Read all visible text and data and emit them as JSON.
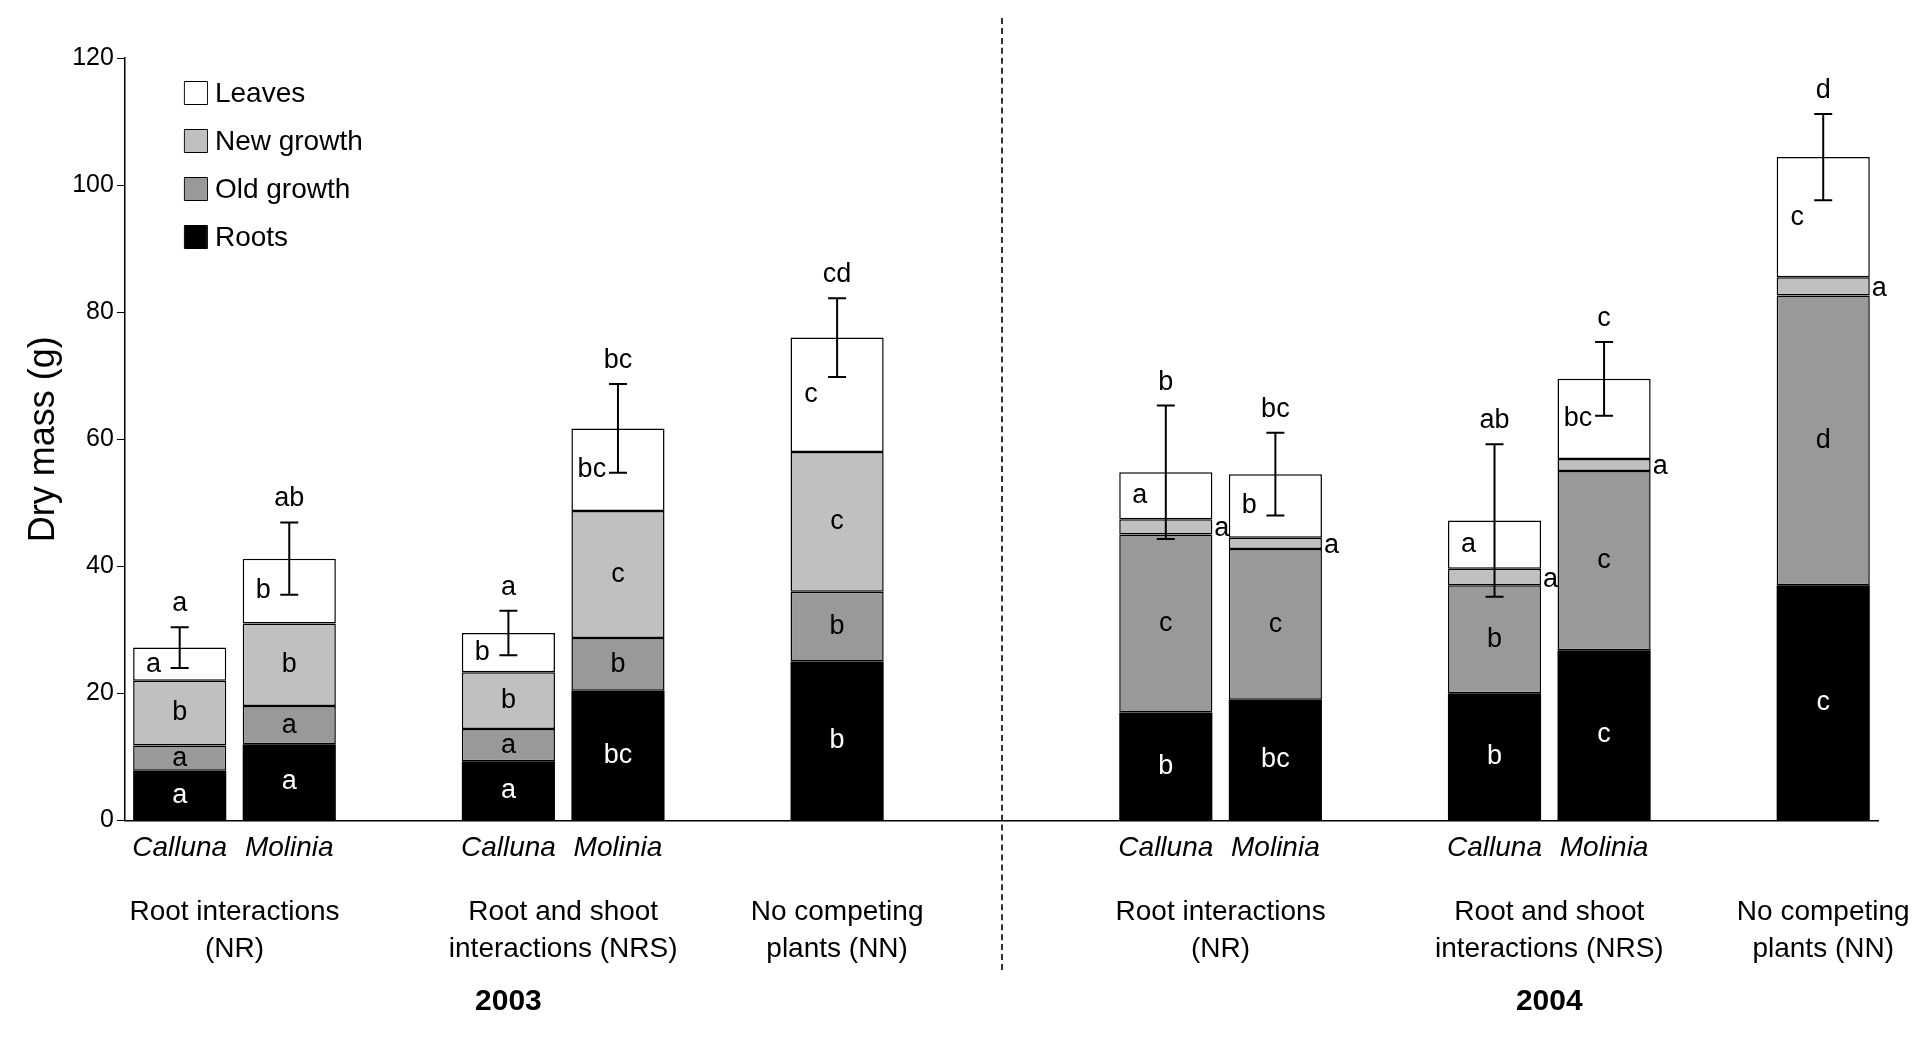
{
  "chart_data": {
    "type": "bar",
    "stacked": true,
    "ylabel": "Dry mass (g)",
    "categories": [
      "Calluna",
      "Molinia",
      null,
      "Calluna",
      "Molinia",
      null,
      null,
      null,
      null,
      "Calluna",
      "Molinia",
      null,
      "Calluna",
      "Molinia",
      null,
      null
    ],
    "series": [
      {
        "name": "Roots",
        "color": "#000000",
        "values": [
          7.8,
          12,
          null,
          9.3,
          20.4,
          null,
          25,
          null,
          null,
          17,
          19,
          null,
          20,
          26.8,
          null,
          37
        ],
        "value_labels": [
          "a",
          "a",
          null,
          "a",
          "bc",
          null,
          "b",
          null,
          null,
          "b",
          "bc",
          null,
          "b",
          "c",
          null,
          "c"
        ]
      },
      {
        "name": "Old growth",
        "color": "#999999",
        "values": [
          4,
          6,
          null,
          5.1,
          8.3,
          null,
          11,
          null,
          null,
          28,
          23.7,
          null,
          17,
          28.2,
          null,
          45.6
        ],
        "value_labels": [
          "a",
          "a",
          null,
          "a",
          "b",
          null,
          "b",
          null,
          null,
          "c",
          "c",
          null,
          "b",
          "c",
          null,
          "d"
        ]
      },
      {
        "name": "New growth",
        "color": "#c0c0c0",
        "values": [
          10.2,
          13,
          null,
          8.9,
          20,
          null,
          22,
          null,
          null,
          2.4,
          1.8,
          null,
          2.6,
          1.9,
          null,
          2.9
        ],
        "value_labels": [
          "b",
          "b",
          null,
          "b",
          "c",
          null,
          "c",
          null,
          null,
          "a",
          "a",
          null,
          "a",
          "a",
          null,
          "a"
        ]
      },
      {
        "name": "Leaves",
        "color": "#ffffff",
        "values": [
          5.2,
          10.2,
          null,
          6.2,
          13,
          null,
          18,
          null,
          null,
          7.4,
          10,
          null,
          7.6,
          12.6,
          null,
          18.9
        ],
        "value_labels": [
          "a",
          "b",
          null,
          "b",
          "bc",
          null,
          "c",
          null,
          null,
          "a",
          "b",
          null,
          "a",
          "bc",
          null,
          "c"
        ],
        "errors": [
          3.2,
          5.7,
          null,
          3.5,
          7,
          null,
          6.2,
          null,
          null,
          10.5,
          6.5,
          null,
          12,
          5.8,
          null,
          6.8
        ]
      }
    ],
    "ylim": [
      0,
      120
    ],
    "yticks": [
      0,
      20,
      40,
      60,
      80,
      100,
      120
    ],
    "grid": false,
    "legend": "top left",
    "annotations": [
      "a",
      "ab",
      "a",
      "bc",
      "cd",
      "b",
      "bc",
      "ab",
      "c",
      "d",
      "Root interactions (NR)",
      "Root and shoot interactions (NRS)",
      "No competing plants (NN)",
      "Root interactions (NR)",
      "Root and shoot interactions (NRS)",
      "No competing plants (NN)",
      "2003",
      "2004"
    ]
  }
}
